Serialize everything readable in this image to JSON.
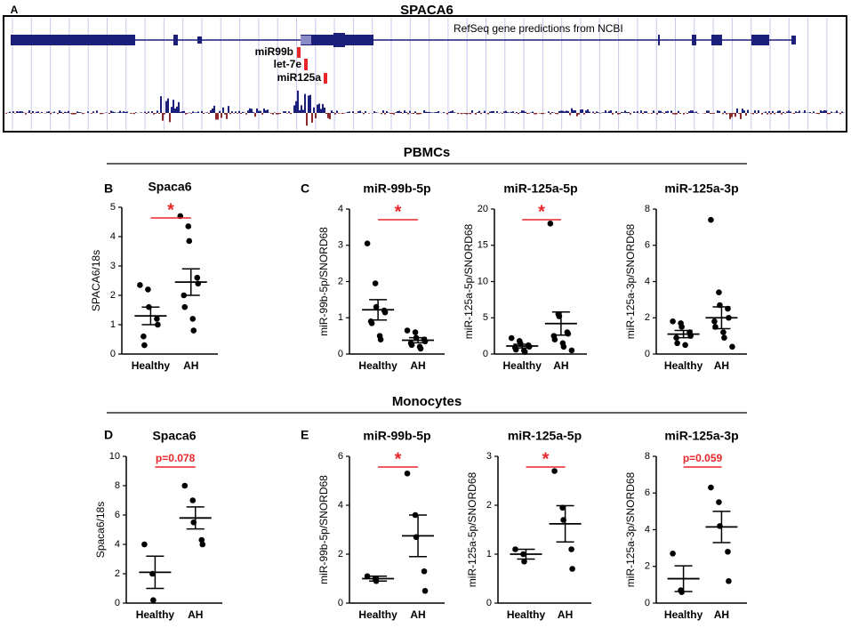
{
  "figure": {
    "panel_a": {
      "letter": "A",
      "gene": "SPACA6",
      "track_label": "RefSeq gene predictions from NCBI",
      "mirnas": [
        "miR99b",
        "let-7e",
        "miR125a"
      ]
    },
    "sections": [
      "PBMCs",
      "Monocytes"
    ],
    "panel_letters": [
      "B",
      "C",
      "D",
      "E"
    ]
  },
  "chart_data": [
    {
      "type": "scatter",
      "title": "Spaca6",
      "ylabel": "SPACA6/18s",
      "categories": [
        "Healthy",
        "AH"
      ],
      "points": [
        [
          2.35,
          2.2,
          1.6,
          1.2,
          1.0,
          0.6,
          0.3
        ],
        [
          4.7,
          4.35,
          3.85,
          2.6,
          2.4,
          2.0,
          1.6,
          1.2,
          0.8
        ]
      ],
      "mean": [
        1.3,
        2.45
      ],
      "sem": [
        0.3,
        0.45
      ],
      "ylim": [
        0,
        5
      ],
      "yticks": [
        0,
        1,
        2,
        3,
        4,
        5
      ],
      "annotation": "*"
    },
    {
      "type": "scatter",
      "title": "miR-99b-5p",
      "ylabel": "miR-99b-5p/SNORD68",
      "categories": [
        "Healthy",
        "AH"
      ],
      "points": [
        [
          3.05,
          1.95,
          1.3,
          1.2,
          1.15,
          0.9,
          0.85,
          0.5,
          0.4
        ],
        [
          0.65,
          0.6,
          0.45,
          0.4,
          0.35,
          0.3,
          0.25,
          0.2,
          0.15
        ]
      ],
      "mean": [
        1.22,
        0.38
      ],
      "sem": [
        0.28,
        0.07
      ],
      "ylim": [
        0,
        4
      ],
      "yticks": [
        0,
        1,
        2,
        3,
        4
      ],
      "annotation": "*"
    },
    {
      "type": "scatter",
      "title": "miR-125a-5p",
      "ylabel": "miR-125a-5p/SNORD68",
      "categories": [
        "Healthy",
        "AH"
      ],
      "points": [
        [
          2.2,
          1.8,
          1.5,
          1.2,
          1.0,
          0.9,
          0.6,
          0.5,
          0.3
        ],
        [
          18,
          5.5,
          5.2,
          3,
          2.8,
          2.5,
          2,
          1.5,
          1,
          0.5
        ]
      ],
      "mean": [
        1.1,
        4.2
      ],
      "sem": [
        0.25,
        1.6
      ],
      "ylim": [
        0,
        20
      ],
      "yticks": [
        0,
        5,
        10,
        15,
        20
      ],
      "annotation": "*"
    },
    {
      "type": "scatter",
      "title": "miR-125a-3p",
      "ylabel": "miR-125a-3p/SNORD68",
      "categories": [
        "Healthy",
        "AH"
      ],
      "points": [
        [
          1.8,
          1.7,
          1.5,
          1.2,
          1.0,
          0.9,
          0.6,
          0.5
        ],
        [
          7.4,
          3.4,
          2.7,
          2.5,
          2.0,
          1.8,
          1.5,
          1.2,
          0.9,
          0.4
        ]
      ],
      "mean": [
        1.1,
        2.0
      ],
      "sem": [
        0.2,
        0.6
      ],
      "ylim": [
        0,
        8
      ],
      "yticks": [
        0,
        2,
        4,
        6,
        8
      ]
    },
    {
      "type": "scatter",
      "title": "Spaca6",
      "ylabel": "Spaca6/18s",
      "categories": [
        "Healthy",
        "AH"
      ],
      "points": [
        [
          4.0,
          2.0,
          0.2
        ],
        [
          8.0,
          7.0,
          5.5,
          4.3,
          4.0
        ]
      ],
      "mean": [
        2.1,
        5.8
      ],
      "sem": [
        1.1,
        0.75
      ],
      "ylim": [
        0,
        10
      ],
      "yticks": [
        0,
        2,
        4,
        6,
        8,
        10
      ],
      "annotation": "p=0.078"
    },
    {
      "type": "scatter",
      "title": "miR-99b-5p",
      "ylabel": "miR-99b-5p/SNORD68",
      "categories": [
        "Healthy",
        "AH"
      ],
      "points": [
        [
          1.1,
          1.0,
          0.9
        ],
        [
          5.3,
          3.6,
          2.7,
          1.3,
          0.5
        ]
      ],
      "mean": [
        1.0,
        2.75
      ],
      "sem": [
        0.1,
        0.85
      ],
      "ylim": [
        0,
        6
      ],
      "yticks": [
        0,
        2,
        4,
        6
      ],
      "annotation": "*"
    },
    {
      "type": "scatter",
      "title": "miR-125a-5p",
      "ylabel": "miR-125a-5p/SNORD68",
      "categories": [
        "Healthy",
        "AH"
      ],
      "points": [
        [
          1.1,
          1.0,
          0.85
        ],
        [
          2.7,
          1.95,
          1.7,
          1.1,
          0.7
        ]
      ],
      "mean": [
        1.0,
        1.62
      ],
      "sem": [
        0.1,
        0.37
      ],
      "ylim": [
        0,
        3
      ],
      "yticks": [
        0,
        1,
        2,
        3
      ],
      "annotation": "*"
    },
    {
      "type": "scatter",
      "title": "miR-125a-3p",
      "ylabel": "miR-125a-3p/SNORD68",
      "categories": [
        "Healthy",
        "AH"
      ],
      "points": [
        [
          2.7,
          0.7,
          0.6
        ],
        [
          6.3,
          5.5,
          4.2,
          2.8,
          1.2
        ]
      ],
      "mean": [
        1.33,
        4.15
      ],
      "sem": [
        0.7,
        0.85
      ],
      "ylim": [
        0,
        8
      ],
      "yticks": [
        0,
        2,
        4,
        6,
        8
      ],
      "annotation": "p=0.059"
    }
  ]
}
